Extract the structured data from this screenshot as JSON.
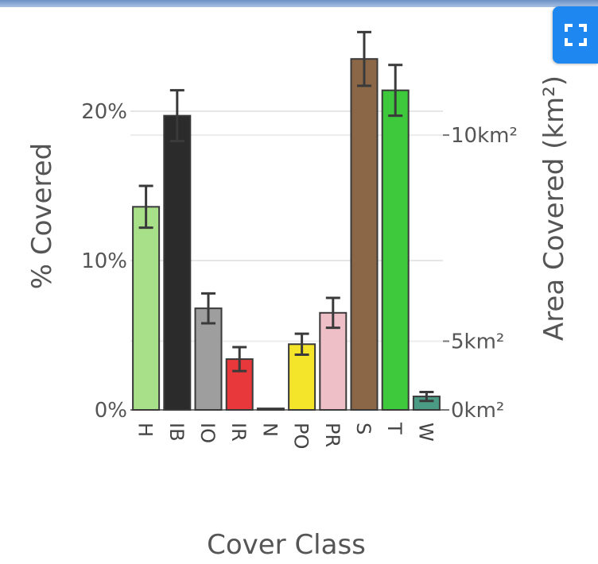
{
  "chart_data": {
    "type": "bar",
    "xlabel": "Cover Class",
    "ylabel": "% Covered",
    "y2label": "Area Covered (km²)",
    "ylim": [
      0,
      25.2
    ],
    "yticks": [
      {
        "value": 0,
        "label": "0%"
      },
      {
        "value": 10,
        "label": "10%"
      },
      {
        "value": 20,
        "label": "20%"
      }
    ],
    "y2ticks": [
      {
        "value": 0,
        "label": "0km²"
      },
      {
        "value": 4.6,
        "label": "5km²"
      },
      {
        "value": 18.4,
        "label": "10km²"
      }
    ],
    "grid": true,
    "legend": "none",
    "categories": [
      "H",
      "IB",
      "IO",
      "IR",
      "N",
      "PO",
      "PR",
      "S",
      "T",
      "W"
    ],
    "values": [
      13.6,
      19.7,
      6.8,
      3.4,
      0.1,
      4.4,
      6.5,
      23.5,
      21.4,
      0.9
    ],
    "error": [
      1.4,
      1.7,
      1.0,
      0.8,
      0.0,
      0.7,
      1.0,
      1.8,
      1.7,
      0.3
    ],
    "colors": [
      "#a8e08a",
      "#2b2b2b",
      "#9e9e9e",
      "#e8383b",
      "#555555",
      "#f4e42a",
      "#eebfc6",
      "#8b6748",
      "#3dc93b",
      "#4a9a84"
    ]
  },
  "ui": {
    "expand_icon": "expand-icon"
  }
}
